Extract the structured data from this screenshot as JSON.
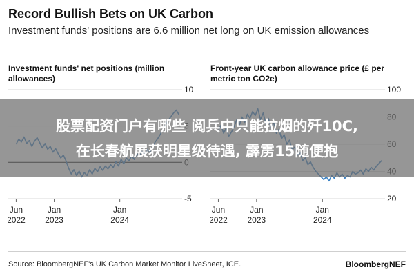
{
  "header": {
    "title": "Record Bullish Bets on UK Carbon",
    "subtitle": "Investment funds' positions are 6.6 million net long on UK emission allowances"
  },
  "overlay": {
    "line1": "股票配资门户有哪些 阅兵中只能拉烟的歼10C,",
    "line2": "在长春航展获明星级待遇, 霹雳15随便抱"
  },
  "footer": {
    "source": "Source: BloombergNEF's UK Carbon Market Monitor LiveSheet, ICE.",
    "brand": "BloombergNEF"
  },
  "colors": {
    "series": "#3b82c4",
    "grid": "#d9d9d9",
    "zero_line": "#222222",
    "overlay": "#6e6e6e"
  },
  "chart_data": [
    {
      "type": "line",
      "title": "Investment funds' net positions (million allowances)",
      "xlabel": "",
      "ylabel": "",
      "ylim": [
        -5,
        10
      ],
      "yticks": [
        -5,
        0,
        5,
        10
      ],
      "xticks": [
        {
          "value": 2022.42,
          "line1": "Jun",
          "line2": "2022"
        },
        {
          "value": 2023.0,
          "line1": "Jan",
          "line2": "2023"
        },
        {
          "value": 2024.0,
          "line1": "Jan",
          "line2": "2024"
        }
      ],
      "xlim": [
        2022.3,
        2024.95
      ],
      "grid": true,
      "series": [
        {
          "x": [
            2022.42,
            2022.46,
            2022.5,
            2022.54,
            2022.58,
            2022.62,
            2022.66,
            2022.7,
            2022.74,
            2022.78,
            2022.82,
            2022.86,
            2022.9,
            2022.94,
            2022.98,
            2023.02,
            2023.06,
            2023.1,
            2023.14,
            2023.18,
            2023.22,
            2023.26,
            2023.3,
            2023.34,
            2023.38,
            2023.42,
            2023.46,
            2023.5,
            2023.54,
            2023.58,
            2023.62,
            2023.66,
            2023.7,
            2023.74,
            2023.78,
            2023.82,
            2023.86,
            2023.9,
            2023.94,
            2023.98,
            2024.02,
            2024.06,
            2024.1,
            2024.14,
            2024.18,
            2024.22,
            2024.26,
            2024.3,
            2024.34,
            2024.38,
            2024.42,
            2024.46,
            2024.5,
            2024.54,
            2024.58,
            2024.62,
            2024.66,
            2024.7,
            2024.74,
            2024.78,
            2024.82,
            2024.86,
            2024.9
          ],
          "y": [
            2.5,
            3.2,
            2.8,
            3.5,
            2.6,
            3.0,
            2.2,
            2.9,
            3.4,
            2.7,
            2.0,
            2.6,
            1.8,
            2.2,
            1.4,
            1.9,
            1.2,
            0.6,
            1.0,
            0.2,
            -0.8,
            -1.6,
            -1.0,
            -1.8,
            -1.2,
            -2.0,
            -1.4,
            -1.8,
            -1.0,
            -1.6,
            -0.8,
            -1.3,
            -0.6,
            -1.1,
            -0.5,
            -0.9,
            -0.3,
            -0.7,
            0.1,
            -0.5,
            0.4,
            -0.2,
            0.6,
            0.2,
            0.9,
            0.4,
            1.2,
            0.8,
            1.5,
            1.1,
            1.8,
            1.4,
            2.2,
            2.8,
            3.3,
            3.9,
            4.6,
            5.2,
            5.8,
            6.3,
            6.8,
            7.2,
            6.6
          ]
        }
      ]
    },
    {
      "type": "line",
      "title": "Front-year UK carbon allowance price (£ per metric ton CO2e)",
      "xlabel": "",
      "ylabel": "",
      "ylim": [
        20,
        100
      ],
      "yticks": [
        20,
        40,
        60,
        80,
        100
      ],
      "xticks": [
        {
          "value": 2022.42,
          "line1": "Jun",
          "line2": "2022"
        },
        {
          "value": 2023.0,
          "line1": "Jan",
          "line2": "2023"
        },
        {
          "value": 2024.0,
          "line1": "Jan",
          "line2": "2024"
        }
      ],
      "xlim": [
        2022.3,
        2024.95
      ],
      "grid": true,
      "series": [
        {
          "x": [
            2022.42,
            2022.46,
            2022.5,
            2022.54,
            2022.58,
            2022.62,
            2022.66,
            2022.7,
            2022.74,
            2022.78,
            2022.82,
            2022.86,
            2022.9,
            2022.94,
            2022.98,
            2023.02,
            2023.06,
            2023.1,
            2023.14,
            2023.18,
            2023.22,
            2023.26,
            2023.3,
            2023.34,
            2023.38,
            2023.42,
            2023.46,
            2023.5,
            2023.54,
            2023.58,
            2023.62,
            2023.66,
            2023.7,
            2023.74,
            2023.78,
            2023.82,
            2023.86,
            2023.9,
            2023.94,
            2023.98,
            2024.02,
            2024.06,
            2024.1,
            2024.14,
            2024.18,
            2024.22,
            2024.26,
            2024.3,
            2024.34,
            2024.38,
            2024.42,
            2024.46,
            2024.5,
            2024.54,
            2024.58,
            2024.62,
            2024.66,
            2024.7,
            2024.74,
            2024.78,
            2024.82,
            2024.86,
            2024.9
          ],
          "y": [
            70,
            74,
            68,
            72,
            66,
            69,
            73,
            78,
            74,
            80,
            76,
            82,
            79,
            84,
            81,
            86,
            78,
            83,
            75,
            79,
            72,
            76,
            68,
            71,
            64,
            67,
            60,
            63,
            56,
            58,
            52,
            54,
            48,
            50,
            45,
            47,
            43,
            40,
            38,
            36,
            34,
            36,
            33,
            37,
            35,
            39,
            36,
            38,
            35,
            37,
            36,
            40,
            38,
            39,
            41,
            38,
            42,
            40,
            43,
            41,
            44,
            46,
            48
          ]
        }
      ]
    }
  ]
}
